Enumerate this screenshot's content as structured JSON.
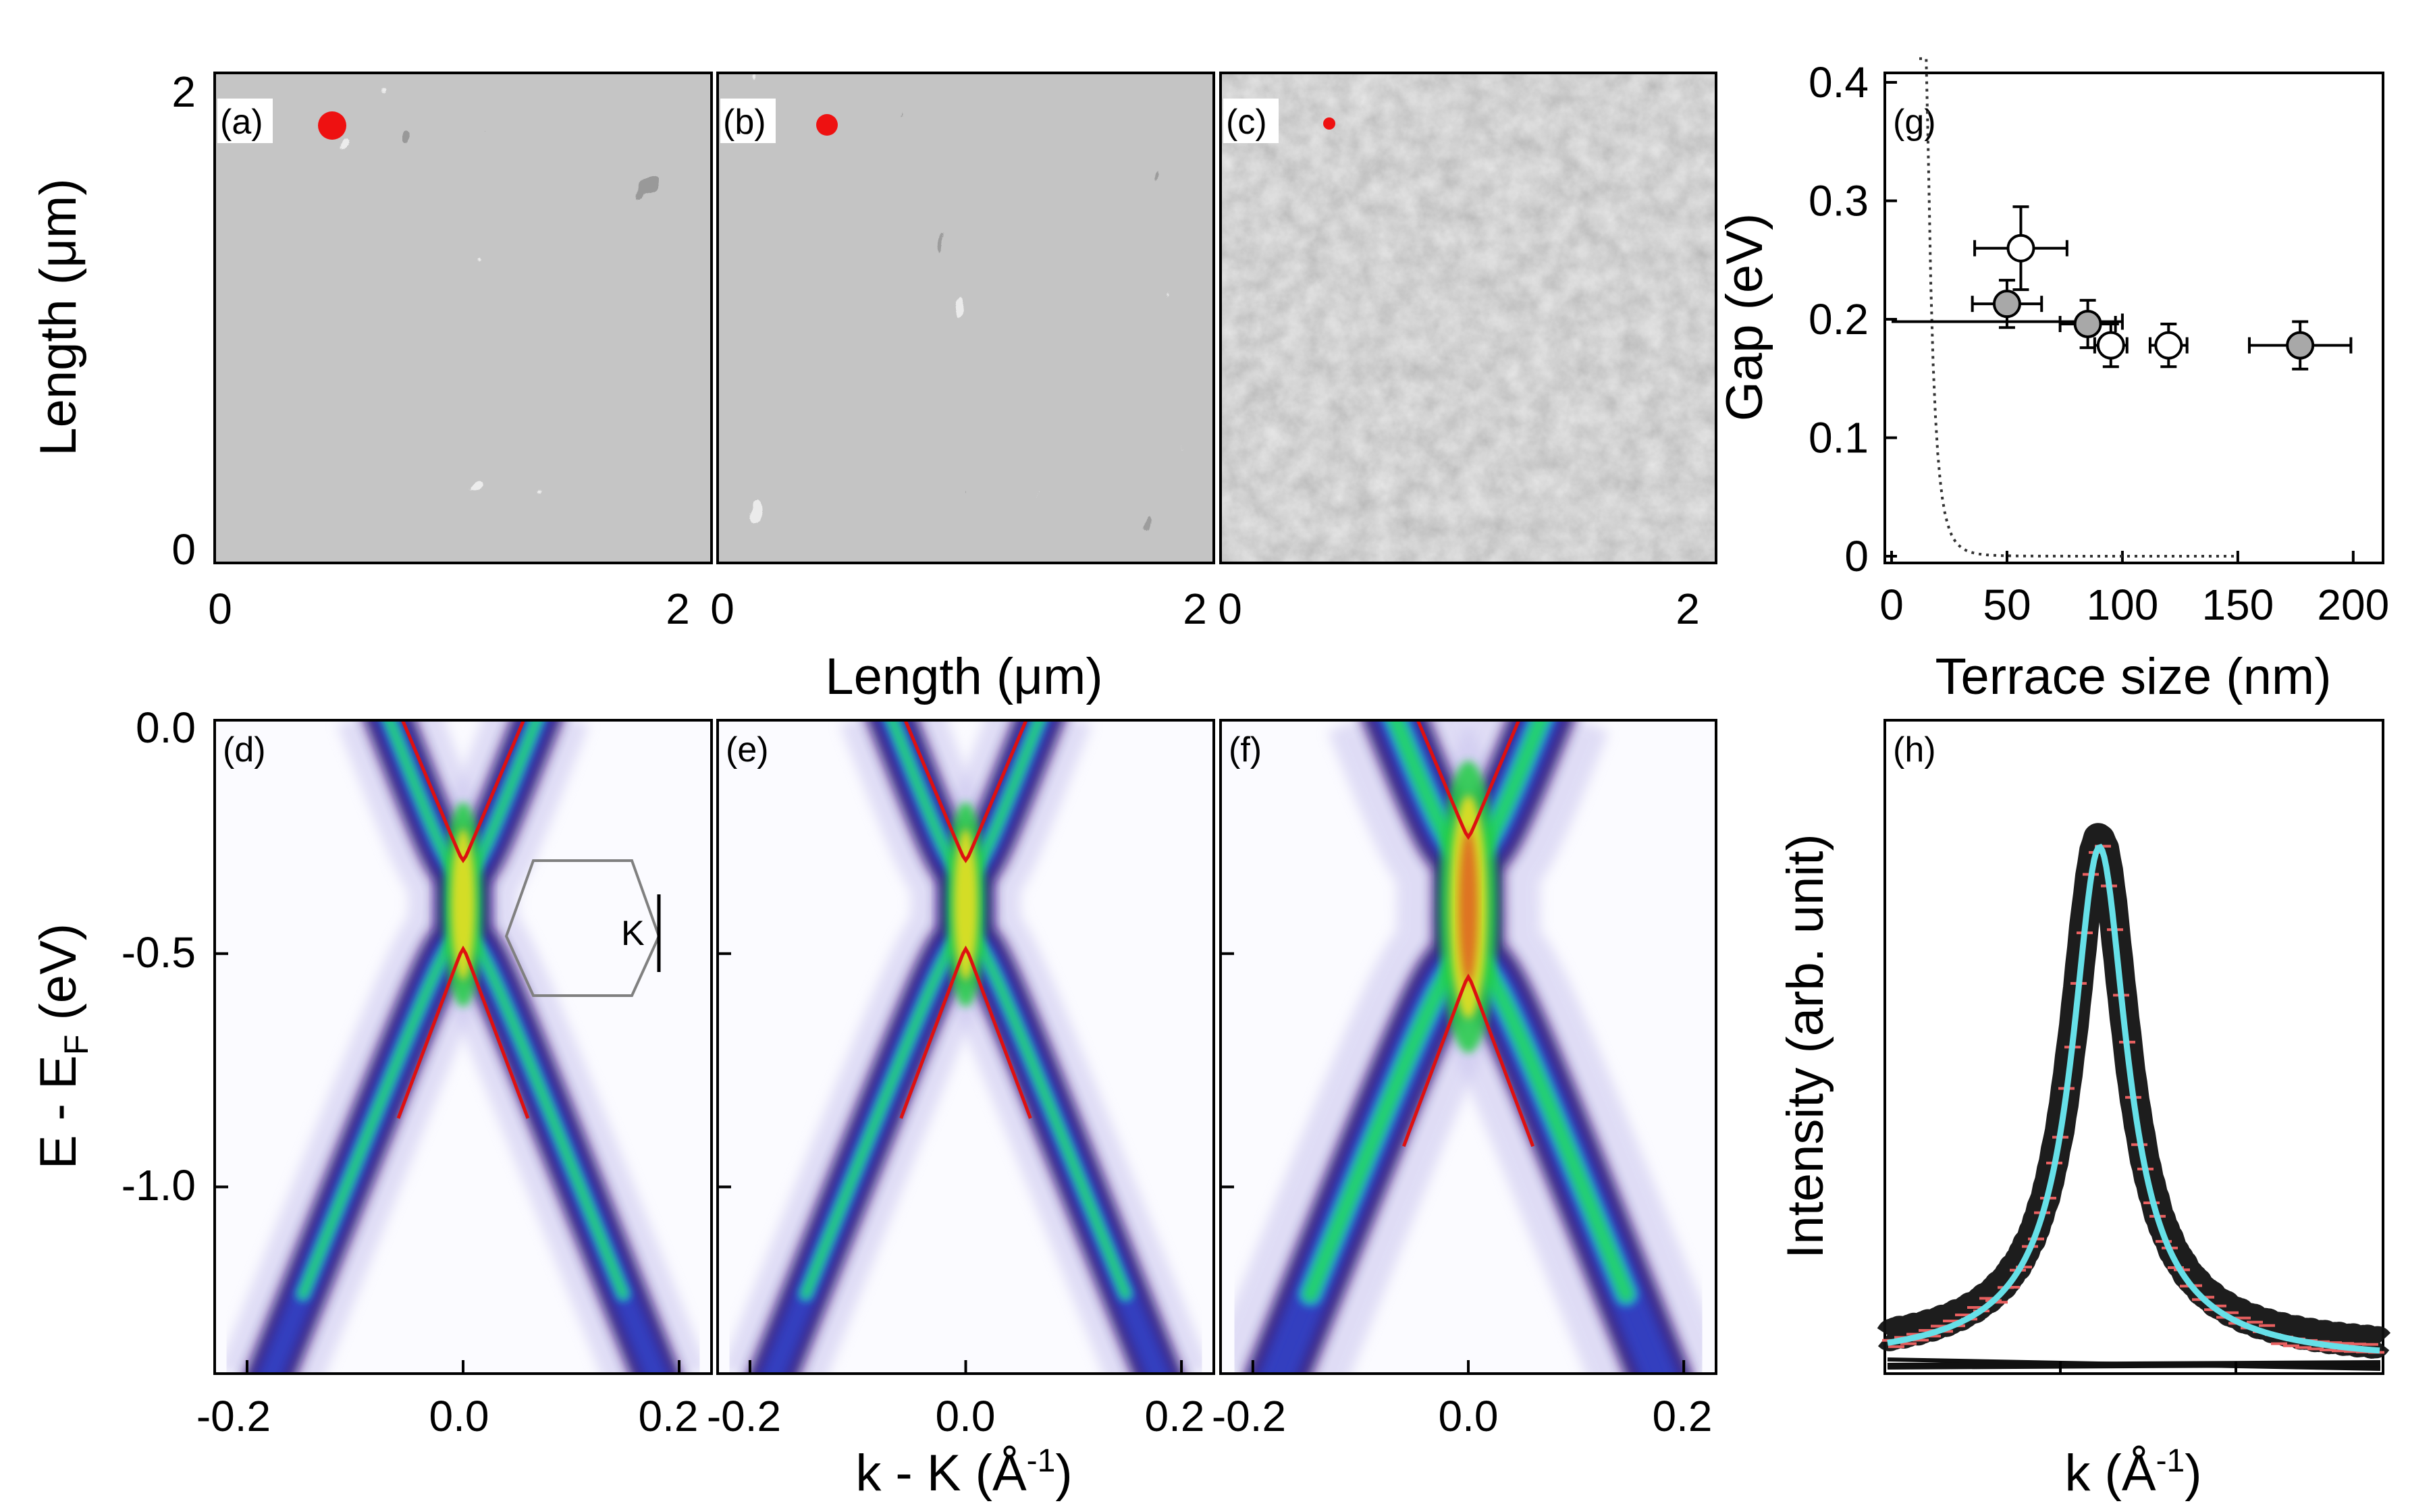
{
  "chart_data": [
    {
      "type": "image",
      "panel_labels": [
        "(a)",
        "(b)",
        "(c)"
      ],
      "description_markers": [
        "spot-size-marker",
        "spot-size-marker",
        "spot-size-marker"
      ],
      "ylabel": "Length (μm)",
      "xlabel": "Length (μm)",
      "xticks": [
        "0",
        "2",
        "0",
        "2",
        "0",
        "2"
      ],
      "yticks": [
        "2",
        "0"
      ],
      "colors": {
        "marker": "#ee1111",
        "frame": "#000000"
      }
    },
    {
      "type": "heatmap",
      "panel_labels": [
        "(d)",
        "(e)",
        "(f)"
      ],
      "xlabel": "k - K (Å⁻¹)",
      "ylabel": "E - E_F (eV)",
      "ylabel_main": "E - E",
      "ylabel_sub": "F",
      "ylabel_tail": " (eV)",
      "xlabel_main": "k - K (Å",
      "xlabel_sup": "-1",
      "xlabel_tail": ")",
      "xticks": [
        "-0.2",
        "0.0",
        "0.2",
        "-0.2",
        "0.0",
        "0.2",
        "-0.2",
        "0.0",
        "0.2"
      ],
      "yticks": [
        "0.0",
        "-0.5",
        "-1.0"
      ],
      "xlim": [
        -0.23,
        0.23
      ],
      "ylim": [
        -1.4,
        0.0
      ],
      "gap_edges": [
        {
          "upper": -0.3,
          "lower": -0.49
        },
        {
          "upper": -0.3,
          "lower": -0.49
        },
        {
          "upper": -0.25,
          "lower": -0.55
        }
      ],
      "inset_label": "K",
      "colors": {
        "fit": "#dd1111",
        "hexagon": "#808080"
      }
    },
    {
      "type": "scatter",
      "panel_label": "(g)",
      "xlabel": "Terrace size (nm)",
      "ylabel": "Gap (eV)",
      "xlim": [
        0,
        210
      ],
      "ylim": [
        0,
        0.4
      ],
      "xticks": [
        "0",
        "50",
        "100",
        "150",
        "200"
      ],
      "yticks": [
        "0",
        "0.1",
        "0.2",
        "0.3",
        "0.4"
      ],
      "series": [
        {
          "name": "open",
          "color": "#ffffff",
          "points": [
            {
              "x": 56,
              "y": 0.26,
              "xerr": 20,
              "yerr": 0.035
            },
            {
              "x": 95,
              "y": 0.178,
              "xerr": 7,
              "yerr": 0.018
            },
            {
              "x": 120,
              "y": 0.178,
              "xerr": 8,
              "yerr": 0.018
            }
          ]
        },
        {
          "name": "filled",
          "color": "#a8a8a8",
          "points": [
            {
              "x": 50,
              "y": 0.213,
              "xerr": 15,
              "yerr": 0.02
            },
            {
              "x": 85,
              "y": 0.196,
              "xerr": 12,
              "yerr": 0.02
            },
            {
              "x": 177,
              "y": 0.178,
              "xerr": 22,
              "yerr": 0.02
            }
          ]
        }
      ],
      "extra_error_bar": {
        "x": 50,
        "y": 0.198,
        "xerr_low": 50,
        "xerr_high": 50
      },
      "dotted_curve": "gap ~ 1/L^n decay"
    },
    {
      "type": "line",
      "panel_label": "(h)",
      "xlabel": "k (Å⁻¹)",
      "xlabel_main": "k (Å",
      "xlabel_sup": "-1",
      "xlabel_tail": ")",
      "ylabel": "Intensity (arb. unit)",
      "series": [
        {
          "name": "data",
          "color": "#e86060"
        },
        {
          "name": "fit",
          "color": "#66e0e8"
        }
      ]
    }
  ]
}
